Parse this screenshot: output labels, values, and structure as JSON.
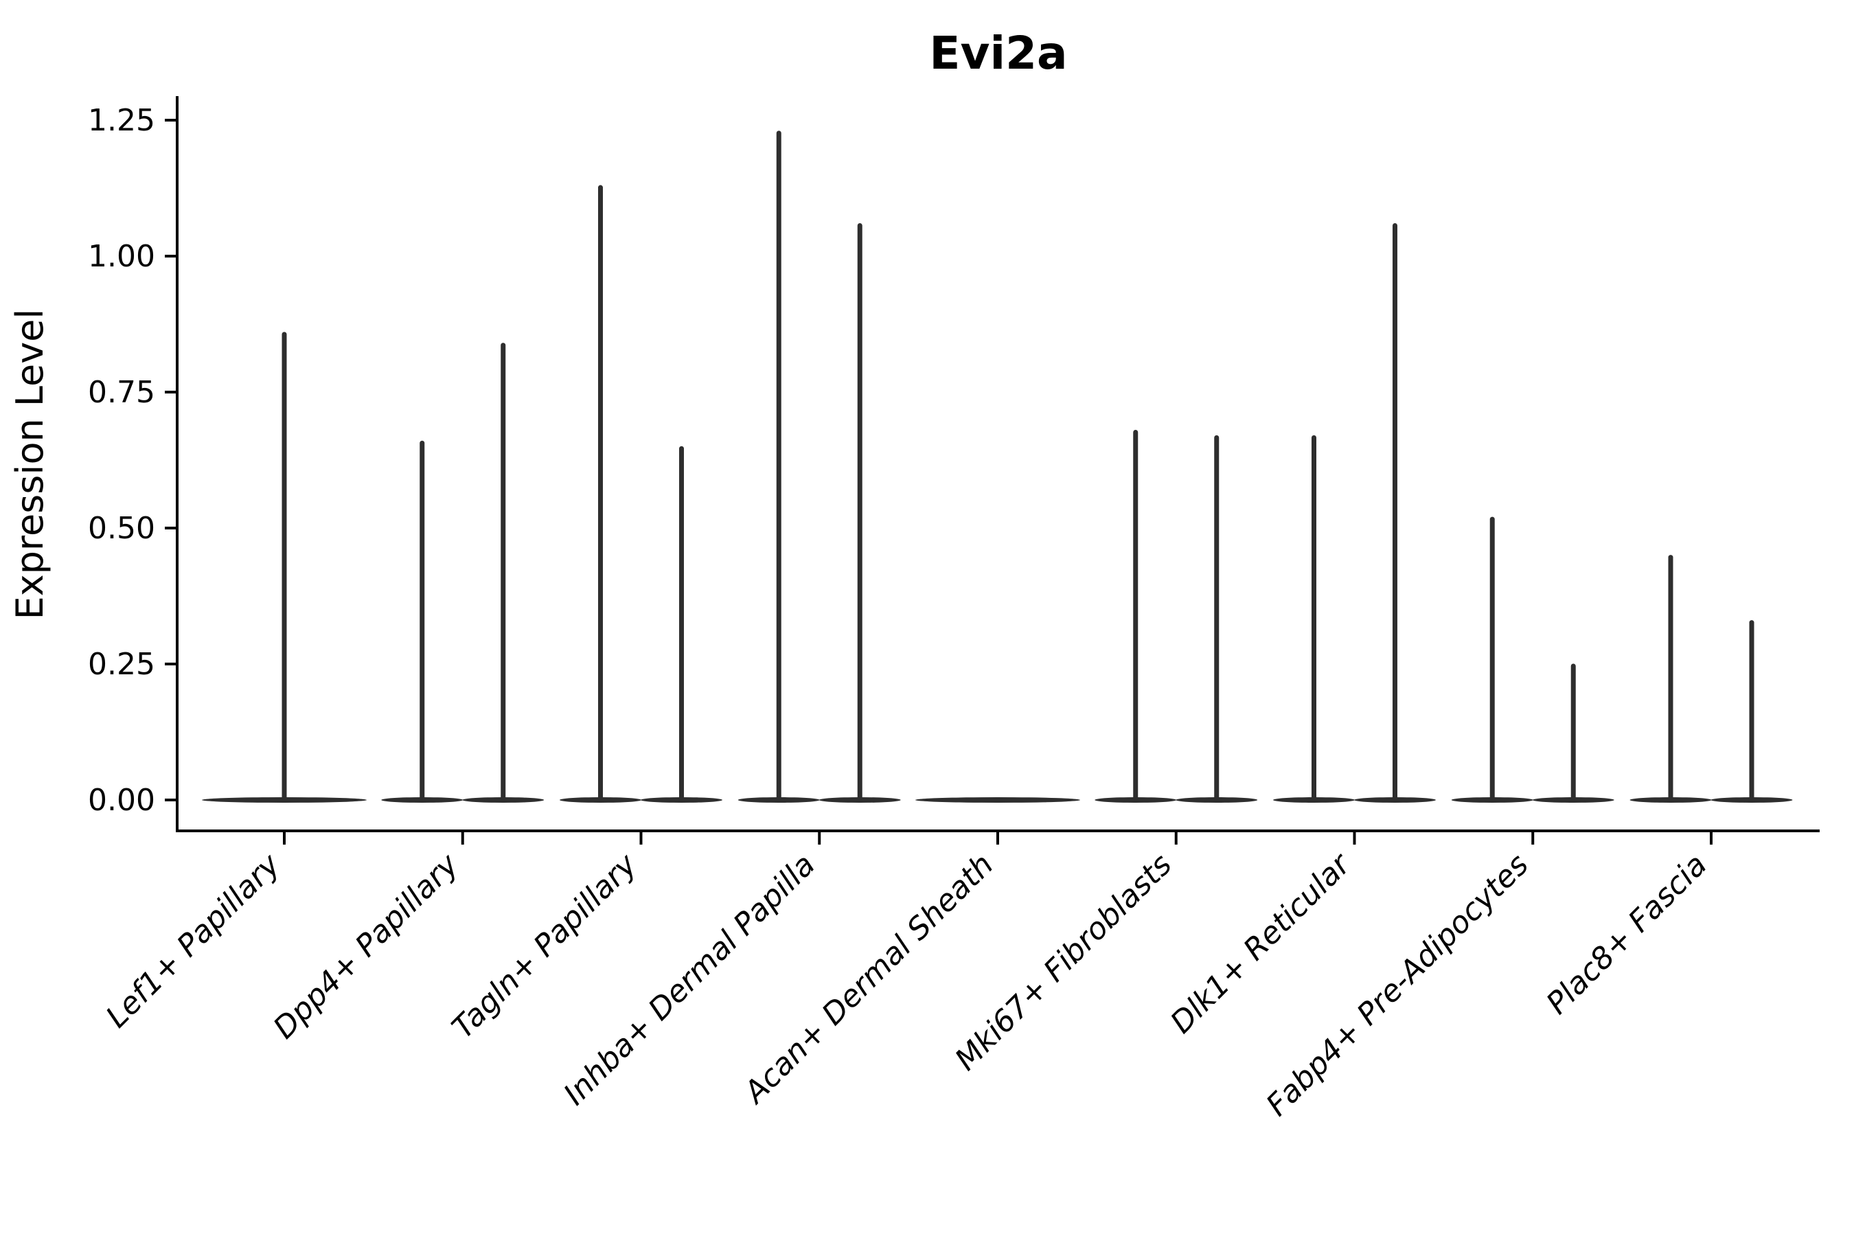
{
  "title": "Evi2a",
  "colors": {
    "violin": "#2e2e2e",
    "axis": "#000000",
    "text": "#000000",
    "background": "#ffffff"
  },
  "chart_data": {
    "type": "violin",
    "title": "Evi2a",
    "xlabel": "",
    "ylabel": "Expression Level",
    "ylim": [
      -0.06,
      1.3
    ],
    "grid": false,
    "legend": "none",
    "yticks": [
      {
        "value": 0.0,
        "label": "0.00"
      },
      {
        "value": 0.25,
        "label": "0.25"
      },
      {
        "value": 0.5,
        "label": "0.50"
      },
      {
        "value": 0.75,
        "label": "0.75"
      },
      {
        "value": 1.0,
        "label": "1.00"
      },
      {
        "value": 1.25,
        "label": "1.25"
      }
    ],
    "description": "Collapsed violin plot: each cluster shows a flat density base at expression 0 with thin vertical density spikes rising to the maximum expression value.",
    "categories": [
      {
        "label": "Lef1+ Papillary",
        "violins": [
          {
            "position": "center",
            "width": "full",
            "max_expression": 0.86
          }
        ]
      },
      {
        "label": "Dpp4+ Papillary",
        "violins": [
          {
            "position": "left",
            "width": "half",
            "max_expression": 0.66
          },
          {
            "position": "right",
            "width": "half",
            "max_expression": 0.84
          }
        ]
      },
      {
        "label": "Tagln+ Papillary",
        "violins": [
          {
            "position": "left",
            "width": "half",
            "max_expression": 1.13
          },
          {
            "position": "right",
            "width": "half",
            "max_expression": 0.65
          }
        ]
      },
      {
        "label": "Inhba+ Dermal Papilla",
        "violins": [
          {
            "position": "left",
            "width": "half",
            "max_expression": 1.23
          },
          {
            "position": "right",
            "width": "half",
            "max_expression": 1.06
          }
        ]
      },
      {
        "label": "Acan+ Dermal Sheath",
        "violins": [
          {
            "position": "center",
            "width": "full",
            "max_expression": 0
          }
        ]
      },
      {
        "label": "Mki67+ Fibroblasts",
        "violins": [
          {
            "position": "left",
            "width": "half",
            "max_expression": 0.68
          },
          {
            "position": "right",
            "width": "half",
            "max_expression": 0.67
          }
        ]
      },
      {
        "label": "Dlk1+ Reticular",
        "violins": [
          {
            "position": "left",
            "width": "half",
            "max_expression": 0.67
          },
          {
            "position": "right",
            "width": "half",
            "max_expression": 1.06
          }
        ]
      },
      {
        "label": "Fabp4+ Pre-Adipocytes",
        "violins": [
          {
            "position": "left",
            "width": "half",
            "max_expression": 0.52
          },
          {
            "position": "right",
            "width": "half",
            "max_expression": 0.25
          }
        ]
      },
      {
        "label": "Plac8+ Fascia",
        "violins": [
          {
            "position": "left",
            "width": "half",
            "max_expression": 0.45
          },
          {
            "position": "right",
            "width": "half",
            "max_expression": 0.33
          }
        ]
      }
    ]
  }
}
